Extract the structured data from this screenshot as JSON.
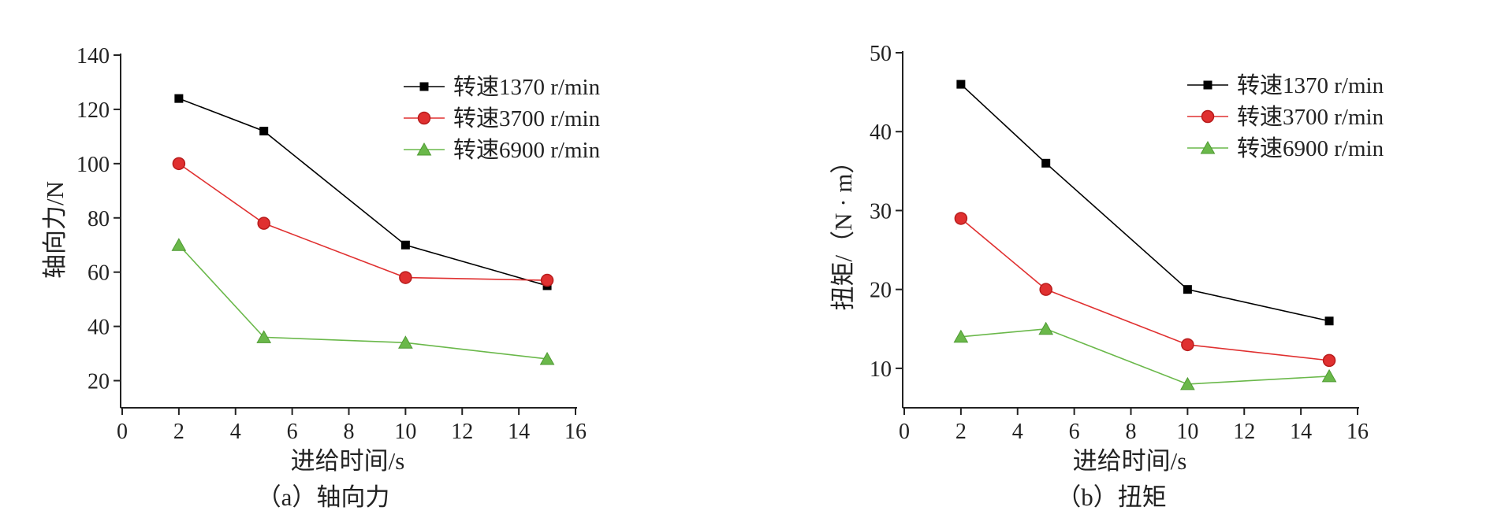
{
  "chart_data": [
    {
      "type": "line",
      "id": "a",
      "caption": "（a）轴向力",
      "xlabel": "进给时间/s",
      "ylabel": "轴向力/N",
      "xlim": [
        0,
        16
      ],
      "ylim": [
        10,
        140
      ],
      "xticks": [
        "0",
        "2",
        "4",
        "6",
        "8",
        "10",
        "12",
        "14",
        "16"
      ],
      "yticks": [
        "20",
        "40",
        "60",
        "80",
        "100",
        "120",
        "140"
      ],
      "legend": "top-right",
      "series": [
        {
          "name": "转速1370 r/min",
          "marker": "square",
          "color": "#000000",
          "x": [
            2,
            5,
            10,
            15
          ],
          "y": [
            124,
            112,
            70,
            55
          ]
        },
        {
          "name": "转速3700 r/min",
          "marker": "circle",
          "color": "#e03030",
          "x": [
            2,
            5,
            10,
            15
          ],
          "y": [
            100,
            78,
            58,
            57
          ]
        },
        {
          "name": "转速6900 r/min",
          "marker": "triangle",
          "color": "#6ab84a",
          "x": [
            2,
            5,
            10,
            15
          ],
          "y": [
            70,
            36,
            34,
            28
          ]
        }
      ]
    },
    {
      "type": "line",
      "id": "b",
      "caption": "（b）扭矩",
      "xlabel": "进给时间/s",
      "ylabel": "扭矩/（N · m）",
      "xlim": [
        0,
        16
      ],
      "ylim": [
        5,
        50
      ],
      "xticks": [
        "0",
        "2",
        "4",
        "6",
        "8",
        "10",
        "12",
        "14",
        "16"
      ],
      "yticks": [
        "10",
        "20",
        "30",
        "40",
        "50"
      ],
      "legend": "top-right",
      "series": [
        {
          "name": "转速1370 r/min",
          "marker": "square",
          "color": "#000000",
          "x": [
            2,
            5,
            10,
            15
          ],
          "y": [
            46,
            36,
            20,
            16
          ]
        },
        {
          "name": "转速3700 r/min",
          "marker": "circle",
          "color": "#e03030",
          "x": [
            2,
            5,
            10,
            15
          ],
          "y": [
            29,
            20,
            13,
            11
          ]
        },
        {
          "name": "转速6900 r/min",
          "marker": "triangle",
          "color": "#6ab84a",
          "x": [
            2,
            5,
            10,
            15
          ],
          "y": [
            14,
            15,
            8,
            9
          ]
        }
      ]
    }
  ]
}
